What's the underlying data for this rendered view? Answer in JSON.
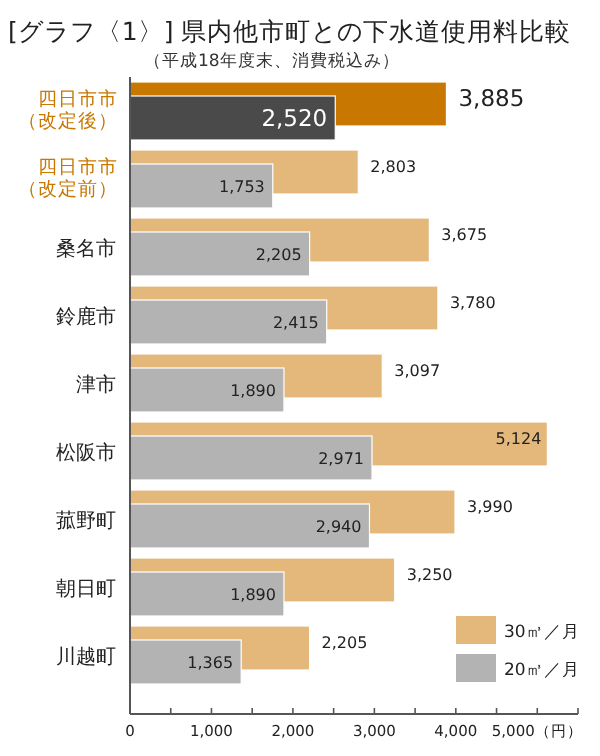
{
  "chart_data": {
    "type": "bar",
    "orientation": "horizontal",
    "title": "[グラフ〈1〉] 県内他市町との下水道使用料比較",
    "subtitle": "（平成18年度末、消費税込み）",
    "categories": [
      "四日市市（改定後）",
      "四日市市（改定前）",
      "桑名市",
      "鈴鹿市",
      "津市",
      "松阪市",
      "菰野町",
      "朝日町",
      "川越町"
    ],
    "series": [
      {
        "name": "30㎥／月",
        "color": "#e3b87a",
        "colors": [
          "#c87800",
          "#e3b87a",
          "#e3b87a",
          "#e3b87a",
          "#e3b87a",
          "#e3b87a",
          "#e3b87a",
          "#e3b87a",
          "#e3b87a"
        ],
        "values": [
          3885,
          2803,
          3675,
          3780,
          3097,
          5124,
          3990,
          3250,
          2205
        ],
        "value_labels": [
          "3,885",
          "2,803",
          "3,675",
          "3,780",
          "3,097",
          "5,124",
          "3,990",
          "3,250",
          "2,205"
        ]
      },
      {
        "name": "20㎥／月",
        "color": "#b3b3b3",
        "colors": [
          "#4a4a4a",
          "#b3b3b3",
          "#b3b3b3",
          "#b3b3b3",
          "#b3b3b3",
          "#b3b3b3",
          "#b3b3b3",
          "#b3b3b3",
          "#b3b3b3"
        ],
        "values": [
          2520,
          1753,
          2205,
          2415,
          1890,
          2971,
          2940,
          1890,
          1365
        ],
        "value_labels": [
          "2,520",
          "1,753",
          "2,205",
          "2,415",
          "1,890",
          "2,971",
          "2,940",
          "1,890",
          "1,365"
        ]
      }
    ],
    "xlim": [
      0,
      5500
    ],
    "xticks": [
      0,
      {
        "value": 500,
        "label": null
      },
      "1,000",
      {
        "value": 1500,
        "label": null
      },
      {
        "value": 2000,
        "label": "2,000"
      },
      {
        "value": 2500,
        "label": null
      },
      {
        "value": 3000,
        "label": "3,000"
      },
      {
        "value": 3500,
        "label": null
      },
      {
        "value": 4000,
        "label": "4,000"
      },
      {
        "value": 4500,
        "label": null
      },
      {
        "value": 5000,
        "label": "5,000（円）"
      },
      {
        "value": 5500,
        "label": null
      }
    ],
    "legend": "bottom right"
  }
}
